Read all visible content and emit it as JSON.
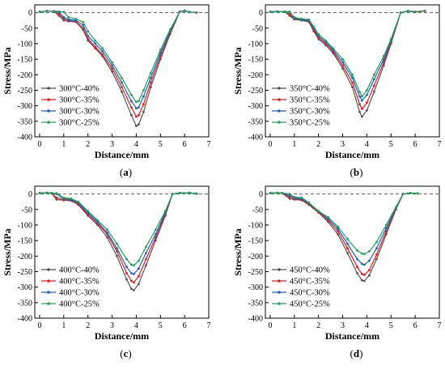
{
  "chart_data": [
    {
      "type": "line",
      "panel_label": "a",
      "xlabel": "Distance/mm",
      "ylabel": "Stress/MPa",
      "xlim": [
        -0.2,
        7
      ],
      "ylim": [
        -400,
        25
      ],
      "xticks": [
        0,
        1,
        2,
        3,
        4,
        5,
        6,
        7
      ],
      "yticks": [
        0,
        -50,
        -100,
        -150,
        -200,
        -250,
        -300,
        -350,
        -400
      ],
      "reference_line": {
        "y": 0,
        "color": "#d62728",
        "style": "dashed"
      },
      "legend_position": "bottom-left",
      "series": [
        {
          "name": "300°C-40%",
          "color": "#555555",
          "x": [
            0,
            0.3,
            0.6,
            0.8,
            1.0,
            1.2,
            1.5,
            1.8,
            2.0,
            2.3,
            2.6,
            3.0,
            3.4,
            3.8,
            4.0,
            4.1,
            4.3,
            4.6,
            5.0,
            5.4,
            5.8,
            6.0,
            6.2,
            6.5
          ],
          "y": [
            3,
            5,
            4,
            -10,
            -25,
            -28,
            -30,
            -55,
            -90,
            -115,
            -140,
            -190,
            -255,
            -330,
            -365,
            -360,
            -320,
            -240,
            -150,
            -70,
            3,
            5,
            2,
            0
          ]
        },
        {
          "name": "300°C-35%",
          "color": "#e41a1c",
          "x": [
            0,
            0.3,
            0.6,
            0.8,
            1.0,
            1.2,
            1.5,
            1.8,
            2.0,
            2.3,
            2.6,
            3.0,
            3.4,
            3.8,
            4.0,
            4.1,
            4.3,
            4.6,
            5.0,
            5.4,
            5.8,
            6.0,
            6.2,
            6.5
          ],
          "y": [
            3,
            5,
            4,
            -5,
            -20,
            -25,
            -28,
            -50,
            -85,
            -110,
            -135,
            -180,
            -240,
            -305,
            -335,
            -330,
            -295,
            -225,
            -140,
            -65,
            3,
            6,
            2,
            0
          ]
        },
        {
          "name": "300°C-30%",
          "color": "#1f5fc4",
          "x": [
            0,
            0.3,
            0.6,
            0.8,
            1.0,
            1.2,
            1.5,
            1.8,
            2.0,
            2.3,
            2.6,
            3.0,
            3.4,
            3.8,
            4.0,
            4.1,
            4.3,
            4.6,
            5.0,
            5.4,
            5.8,
            6.0,
            6.2,
            6.5
          ],
          "y": [
            3,
            5,
            4,
            2,
            -15,
            -22,
            -25,
            -40,
            -75,
            -100,
            -125,
            -170,
            -225,
            -285,
            -308,
            -305,
            -270,
            -210,
            -130,
            -60,
            3,
            6,
            2,
            0
          ]
        },
        {
          "name": "300°C-25%",
          "color": "#1fa35a",
          "x": [
            0,
            0.3,
            0.6,
            0.8,
            1.0,
            1.2,
            1.5,
            1.8,
            2.0,
            2.3,
            2.6,
            3.0,
            3.4,
            3.8,
            4.0,
            4.1,
            4.3,
            4.6,
            5.0,
            5.4,
            5.8,
            6.0,
            6.2,
            6.5
          ],
          "y": [
            3,
            5,
            5,
            4,
            2,
            -15,
            -20,
            -30,
            -60,
            -90,
            -115,
            -160,
            -210,
            -265,
            -288,
            -285,
            -250,
            -195,
            -120,
            -55,
            3,
            7,
            2,
            0
          ]
        }
      ]
    },
    {
      "type": "line",
      "panel_label": "b",
      "xlabel": "Distance/mm",
      "ylabel": "Stress/MPa",
      "xlim": [
        -0.2,
        7
      ],
      "ylim": [
        -400,
        25
      ],
      "xticks": [
        0,
        1,
        2,
        3,
        4,
        5,
        6,
        7
      ],
      "yticks": [
        0,
        -50,
        -100,
        -150,
        -200,
        -250,
        -300,
        -350,
        -400
      ],
      "reference_line": {
        "y": 0,
        "color": "#d62728",
        "style": "dashed"
      },
      "legend_position": "bottom-left",
      "series": [
        {
          "name": "350°C-40%",
          "color": "#555555",
          "x": [
            0,
            0.3,
            0.6,
            0.8,
            1.0,
            1.3,
            1.6,
            1.8,
            2.0,
            2.3,
            2.6,
            3.0,
            3.4,
            3.7,
            3.8,
            4.0,
            4.3,
            4.7,
            5.0,
            5.4,
            5.7,
            6.0,
            6.4
          ],
          "y": [
            3,
            4,
            3,
            -10,
            -22,
            -25,
            -30,
            -60,
            -85,
            -105,
            -130,
            -180,
            -240,
            -320,
            -335,
            -315,
            -255,
            -170,
            -100,
            0,
            5,
            2,
            5
          ]
        },
        {
          "name": "350°C-35%",
          "color": "#e41a1c",
          "x": [
            0,
            0.3,
            0.6,
            0.8,
            1.0,
            1.3,
            1.6,
            1.8,
            2.0,
            2.3,
            2.6,
            3.0,
            3.4,
            3.7,
            3.8,
            4.0,
            4.3,
            4.7,
            5.0,
            5.4,
            5.7,
            6.0,
            6.4
          ],
          "y": [
            3,
            4,
            3,
            -5,
            -20,
            -22,
            -28,
            -55,
            -80,
            -100,
            -125,
            -170,
            -225,
            -295,
            -310,
            -290,
            -235,
            -160,
            -95,
            0,
            5,
            2,
            5
          ]
        },
        {
          "name": "350°C-30%",
          "color": "#1f5fc4",
          "x": [
            0,
            0.3,
            0.6,
            0.8,
            1.0,
            1.3,
            1.6,
            1.8,
            2.0,
            2.3,
            2.6,
            3.0,
            3.4,
            3.7,
            3.8,
            4.0,
            4.3,
            4.7,
            5.0,
            5.4,
            5.7,
            6.0,
            6.4
          ],
          "y": [
            3,
            4,
            3,
            2,
            -18,
            -22,
            -25,
            -50,
            -75,
            -95,
            -120,
            -160,
            -210,
            -270,
            -283,
            -265,
            -215,
            -150,
            -90,
            0,
            5,
            3,
            6
          ]
        },
        {
          "name": "350°C-25%",
          "color": "#1fa35a",
          "x": [
            0,
            0.3,
            0.6,
            0.8,
            1.0,
            1.3,
            1.6,
            1.8,
            2.0,
            2.3,
            2.6,
            3.0,
            3.4,
            3.7,
            3.8,
            4.0,
            4.3,
            4.7,
            5.0,
            5.4,
            5.7,
            6.0,
            6.4
          ],
          "y": [
            3,
            4,
            4,
            3,
            -15,
            -20,
            -22,
            -45,
            -70,
            -90,
            -115,
            -150,
            -200,
            -255,
            -270,
            -250,
            -200,
            -140,
            -85,
            0,
            6,
            3,
            6
          ]
        }
      ]
    },
    {
      "type": "line",
      "panel_label": "c",
      "xlabel": "Distance/mm",
      "ylabel": "Stress/MPa",
      "xlim": [
        -0.2,
        7
      ],
      "ylim": [
        -400,
        25
      ],
      "xticks": [
        0,
        1,
        2,
        3,
        4,
        5,
        6,
        7
      ],
      "yticks": [
        0,
        -50,
        -100,
        -150,
        -200,
        -250,
        -300,
        -350,
        -400
      ],
      "reference_line": {
        "y": 0,
        "color": "#d62728",
        "style": "dashed"
      },
      "legend_position": "bottom-left",
      "series": [
        {
          "name": "400°C-40%",
          "color": "#555555",
          "x": [
            0,
            0.3,
            0.5,
            0.7,
            1.0,
            1.3,
            1.6,
            2.0,
            2.4,
            2.8,
            3.2,
            3.6,
            3.8,
            3.9,
            4.1,
            4.4,
            4.8,
            5.2,
            5.5,
            5.8,
            6.2,
            6.5
          ],
          "y": [
            3,
            4,
            2,
            -18,
            -20,
            -22,
            -35,
            -70,
            -100,
            -140,
            -200,
            -275,
            -305,
            -310,
            -290,
            -230,
            -150,
            -70,
            0,
            3,
            4,
            1
          ]
        },
        {
          "name": "400°C-35%",
          "color": "#e41a1c",
          "x": [
            0,
            0.3,
            0.5,
            0.7,
            1.0,
            1.3,
            1.6,
            2.0,
            2.4,
            2.8,
            3.2,
            3.6,
            3.8,
            3.9,
            4.1,
            4.4,
            4.8,
            5.2,
            5.5,
            5.8,
            6.2,
            6.5
          ],
          "y": [
            3,
            4,
            2,
            -12,
            -18,
            -20,
            -32,
            -65,
            -95,
            -130,
            -185,
            -255,
            -280,
            -285,
            -265,
            -210,
            -140,
            -65,
            0,
            3,
            4,
            1
          ]
        },
        {
          "name": "400°C-30%",
          "color": "#1f5fc4",
          "x": [
            0,
            0.3,
            0.5,
            0.7,
            1.0,
            1.3,
            1.6,
            2.0,
            2.4,
            2.8,
            3.2,
            3.6,
            3.8,
            3.9,
            4.1,
            4.4,
            4.8,
            5.2,
            5.5,
            5.8,
            6.2,
            6.5
          ],
          "y": [
            3,
            4,
            3,
            0,
            -15,
            -18,
            -28,
            -60,
            -90,
            -125,
            -175,
            -235,
            -255,
            -258,
            -240,
            -190,
            -130,
            -60,
            0,
            3,
            4,
            1
          ]
        },
        {
          "name": "400°C-25%",
          "color": "#1fa35a",
          "x": [
            0,
            0.3,
            0.5,
            0.7,
            1.0,
            1.3,
            1.6,
            2.0,
            2.4,
            2.8,
            3.2,
            3.6,
            3.8,
            3.9,
            4.1,
            4.4,
            4.8,
            5.2,
            5.5,
            5.8,
            6.2,
            6.5
          ],
          "y": [
            3,
            4,
            3,
            2,
            -12,
            -15,
            -25,
            -55,
            -85,
            -115,
            -160,
            -210,
            -228,
            -230,
            -215,
            -170,
            -115,
            -55,
            0,
            3,
            4,
            1
          ]
        }
      ]
    },
    {
      "type": "line",
      "panel_label": "d",
      "xlabel": "Distance/mm",
      "ylabel": "Stress/MPa",
      "xlim": [
        -0.2,
        7
      ],
      "ylim": [
        -400,
        25
      ],
      "xticks": [
        0,
        1,
        2,
        3,
        4,
        5,
        6,
        7
      ],
      "yticks": [
        0,
        -50,
        -100,
        -150,
        -200,
        -250,
        -300,
        -350,
        -400
      ],
      "reference_line": {
        "y": 0,
        "color": "#d62728",
        "style": "dashed"
      },
      "legend_position": "bottom-left",
      "series": [
        {
          "name": "450°C-40%",
          "color": "#555555",
          "x": [
            0,
            0.3,
            0.5,
            0.8,
            1.0,
            1.3,
            1.6,
            2.0,
            2.4,
            2.8,
            3.2,
            3.6,
            3.8,
            3.9,
            4.1,
            4.4,
            4.8,
            5.2,
            5.5,
            5.8,
            6.1
          ],
          "y": [
            3,
            4,
            2,
            -15,
            -18,
            -20,
            -35,
            -60,
            -90,
            -130,
            -190,
            -255,
            -278,
            -280,
            -262,
            -210,
            -130,
            -50,
            0,
            3,
            2
          ]
        },
        {
          "name": "450°C-35%",
          "color": "#e41a1c",
          "x": [
            0,
            0.3,
            0.5,
            0.8,
            1.0,
            1.3,
            1.6,
            2.0,
            2.4,
            2.8,
            3.2,
            3.6,
            3.8,
            3.9,
            4.1,
            4.4,
            4.8,
            5.2,
            5.5,
            5.8,
            6.1
          ],
          "y": [
            3,
            4,
            2,
            -10,
            -15,
            -18,
            -32,
            -58,
            -85,
            -120,
            -175,
            -235,
            -258,
            -260,
            -245,
            -195,
            -120,
            -48,
            0,
            3,
            2
          ]
        },
        {
          "name": "450°C-30%",
          "color": "#1f5fc4",
          "x": [
            0,
            0.3,
            0.5,
            0.8,
            1.0,
            1.3,
            1.6,
            2.0,
            2.4,
            2.8,
            3.2,
            3.6,
            3.8,
            3.9,
            4.1,
            4.4,
            4.8,
            5.2,
            5.5,
            5.8,
            6.1
          ],
          "y": [
            3,
            4,
            3,
            -5,
            -12,
            -15,
            -30,
            -55,
            -80,
            -112,
            -160,
            -210,
            -225,
            -228,
            -215,
            -175,
            -110,
            -45,
            0,
            3,
            2
          ]
        },
        {
          "name": "450°C-25%",
          "color": "#1fa35a",
          "x": [
            0,
            0.3,
            0.5,
            0.8,
            1.0,
            1.3,
            1.6,
            2.0,
            2.4,
            2.8,
            3.2,
            3.6,
            3.8,
            3.9,
            4.1,
            4.4,
            4.8,
            5.2,
            5.5,
            5.8,
            6.1
          ],
          "y": [
            3,
            4,
            3,
            0,
            -10,
            -12,
            -28,
            -55,
            -75,
            -105,
            -145,
            -182,
            -192,
            -193,
            -185,
            -155,
            -100,
            -42,
            0,
            3,
            2
          ]
        }
      ]
    }
  ]
}
